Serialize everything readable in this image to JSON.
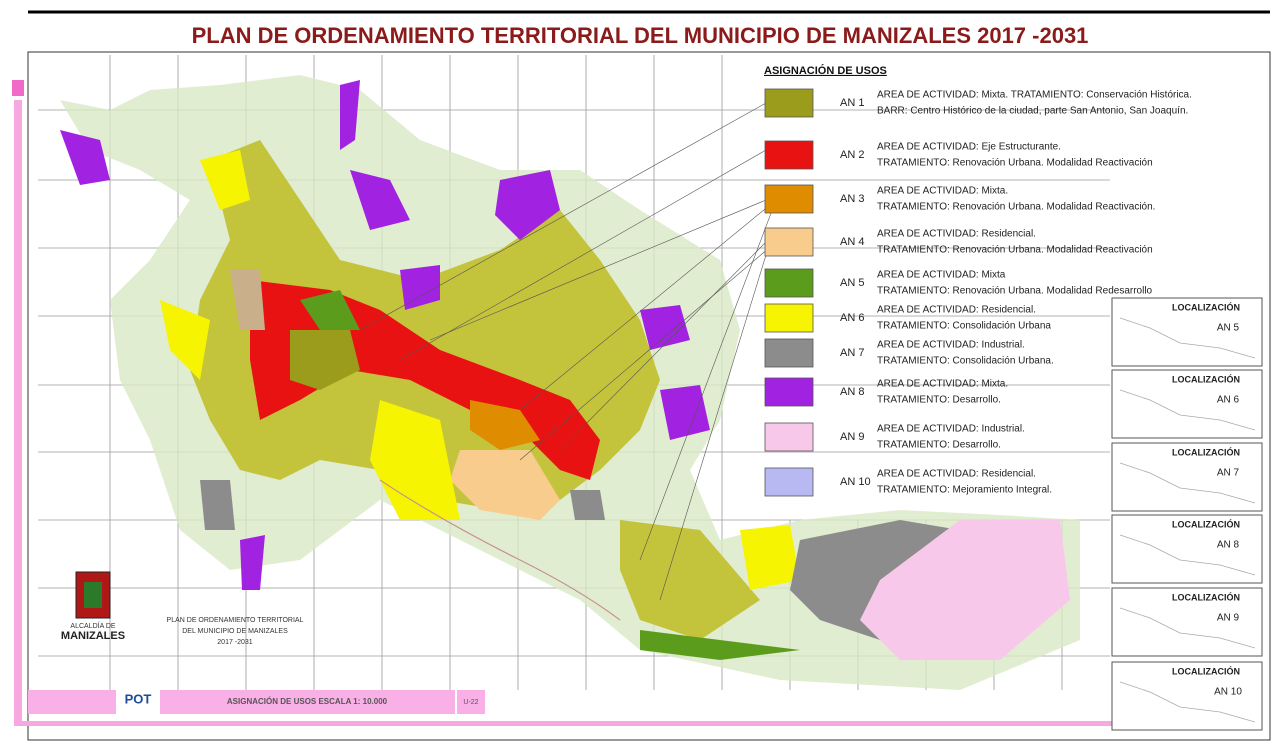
{
  "header": {
    "title": "PLAN DE ORDENAMIENTO TERRITORIAL DEL MUNICIPIO DE MANIZALES 2017 -2031"
  },
  "legend": {
    "title": "ASIGNACIÓN DE USOS",
    "items": [
      {
        "code": "AN 1",
        "color": "#9c9c1c",
        "lines": [
          "AREA DE ACTIVIDAD: Mixta. TRATAMIENTO: Conservación Histórica.",
          "BARR: Centro Histórico de la ciudad, parte San Antonio, San Joaquín."
        ]
      },
      {
        "code": "AN 2",
        "color": "#e81212",
        "lines": [
          "AREA DE ACTIVIDAD: Eje Estructurante.",
          "TRATAMIENTO: Renovación Urbana.  Modalidad Reactivación"
        ]
      },
      {
        "code": "AN 3",
        "color": "#e08c00",
        "lines": [
          "AREA DE ACTIVIDAD: Mixta.",
          "TRATAMIENTO: Renovación Urbana. Modalidad Reactivación."
        ]
      },
      {
        "code": "AN 4",
        "color": "#f8cc8c",
        "lines": [
          "AREA DE ACTIVIDAD: Residencial.",
          "TRATAMIENTO: Renovación Urbana. Modalidad Reactivación"
        ]
      },
      {
        "code": "AN 5",
        "color": "#5c9c1c",
        "lines": [
          "AREA DE ACTIVIDAD: Mixta",
          "TRATAMIENTO: Renovación Urbana. Modalidad Redesarrollo"
        ]
      },
      {
        "code": "AN 6",
        "color": "#f6f400",
        "lines": [
          "AREA DE ACTIVIDAD: Residencial.",
          "TRATAMIENTO: Consolidación Urbana"
        ]
      },
      {
        "code": "AN 7",
        "color": "#8c8c8c",
        "lines": [
          "AREA DE ACTIVIDAD: Industrial.",
          "TRATAMIENTO: Consolidación Urbana."
        ]
      },
      {
        "code": "AN 8",
        "color": "#a222e2",
        "lines": [
          "AREA DE ACTIVIDAD: Mixta.",
          "TRATAMIENTO: Desarrollo."
        ]
      },
      {
        "code": "AN 9",
        "color": "#f8c8ea",
        "lines": [
          "AREA DE ACTIVIDAD: Industrial.",
          "TRATAMIENTO: Desarrollo."
        ]
      },
      {
        "code": "AN 10",
        "color": "#b8b8f2",
        "lines": [
          "AREA DE ACTIVIDAD: Residencial.",
          "TRATAMIENTO: Mejoramiento Integral."
        ]
      }
    ]
  },
  "locators": [
    {
      "title": "LOCALIZACIÓN",
      "label": "AN 5"
    },
    {
      "title": "LOCALIZACIÓN",
      "label": "AN 6"
    },
    {
      "title": "LOCALIZACIÓN",
      "label": "AN 7"
    },
    {
      "title": "LOCALIZACIÓN",
      "label": "AN 8"
    },
    {
      "title": "LOCALIZACIÓN",
      "label": "AN 9"
    },
    {
      "title": "LOCALIZACIÓN",
      "label": "AN 10"
    }
  ],
  "logo": {
    "line1": "ALCALDÍA DE",
    "line2": "MANIZALES"
  },
  "caption": {
    "lines": [
      "PLAN DE ORDENAMIENTO TERRITORIAL",
      "DEL MUNICIPIO DE MANIZALES",
      "2017 -2031"
    ]
  },
  "footer": {
    "brand": "POT",
    "sheet_title": "ASIGNACIÓN DE USOS ESCALA 1: 10.000",
    "sheet_code": "U-22"
  }
}
